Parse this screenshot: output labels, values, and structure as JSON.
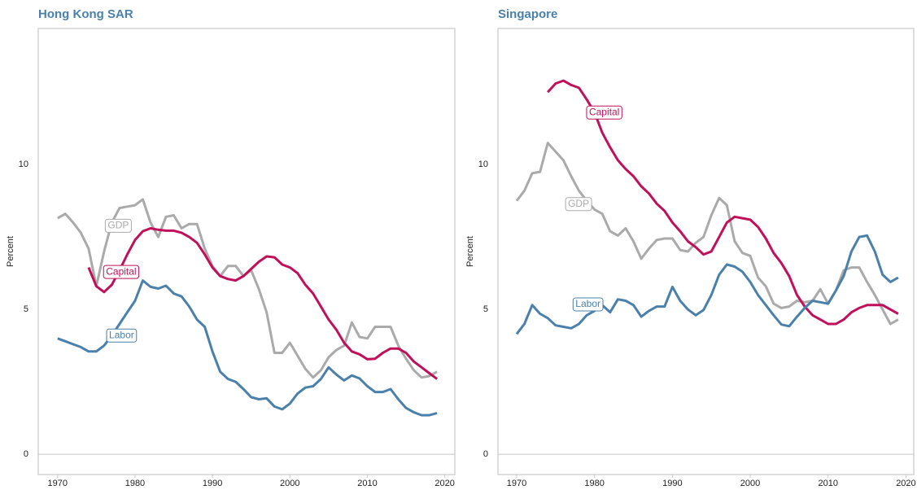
{
  "chart_data": [
    {
      "type": "line",
      "title": "Hong Kong SAR",
      "ylabel": "Percent",
      "x": [
        1970,
        1971,
        1972,
        1973,
        1974,
        1975,
        1976,
        1977,
        1978,
        1979,
        1980,
        1981,
        1982,
        1983,
        1984,
        1985,
        1986,
        1987,
        1988,
        1989,
        1990,
        1991,
        1992,
        1993,
        1994,
        1995,
        1996,
        1997,
        1998,
        1999,
        2000,
        2001,
        2002,
        2003,
        2004,
        2005,
        2006,
        2007,
        2008,
        2009,
        2010,
        2011,
        2012,
        2013,
        2014,
        2015,
        2016,
        2017,
        2018,
        2019
      ],
      "series": [
        {
          "name": "GDP",
          "color": "#aaaaaa",
          "values": [
            8.15,
            8.3,
            8.0,
            7.65,
            7.1,
            5.8,
            7.0,
            8.0,
            8.5,
            8.55,
            8.6,
            8.8,
            8.0,
            7.5,
            8.2,
            8.25,
            7.8,
            7.95,
            7.95,
            7.1,
            6.5,
            6.15,
            6.5,
            6.5,
            6.15,
            6.35,
            5.7,
            4.9,
            3.5,
            3.5,
            3.85,
            3.4,
            2.95,
            2.65,
            2.9,
            3.35,
            3.6,
            3.75,
            4.55,
            4.05,
            4.0,
            4.4,
            4.4,
            4.4,
            3.75,
            3.3,
            2.9,
            2.65,
            2.7,
            2.85
          ]
        },
        {
          "name": "Capital",
          "color": "#c0105a",
          "values": [
            null,
            null,
            null,
            null,
            6.45,
            5.8,
            5.6,
            5.85,
            6.35,
            6.9,
            7.4,
            7.7,
            7.8,
            7.75,
            7.72,
            7.72,
            7.65,
            7.5,
            7.3,
            6.9,
            6.45,
            6.15,
            6.05,
            6.0,
            6.15,
            6.4,
            6.65,
            6.83,
            6.8,
            6.55,
            6.45,
            6.25,
            5.85,
            5.55,
            5.1,
            4.65,
            4.3,
            3.85,
            3.55,
            3.45,
            3.28,
            3.3,
            3.5,
            3.65,
            3.65,
            3.5,
            3.2,
            3.0,
            2.8,
            2.6
          ]
        },
        {
          "name": "Labor",
          "color": "#4a80aa",
          "values": [
            4.0,
            3.9,
            3.8,
            3.7,
            3.55,
            3.55,
            3.75,
            4.1,
            4.5,
            4.9,
            5.3,
            6.0,
            5.78,
            5.72,
            5.82,
            5.55,
            5.45,
            5.1,
            4.65,
            4.4,
            3.55,
            2.85,
            2.6,
            2.5,
            2.25,
            1.97,
            1.9,
            1.93,
            1.65,
            1.55,
            1.75,
            2.1,
            2.3,
            2.35,
            2.6,
            3.0,
            2.75,
            2.55,
            2.72,
            2.62,
            2.35,
            2.15,
            2.15,
            2.25,
            1.9,
            1.6,
            1.45,
            1.35,
            1.35,
            1.42
          ]
        }
      ],
      "xlim": [
        1967.5,
        2021.3
      ],
      "ylim": [
        -0.7,
        14.7
      ],
      "xticks": [
        1970,
        1980,
        1990,
        2000,
        2010,
        2020
      ],
      "yticks": [
        0,
        5,
        10
      ]
    },
    {
      "type": "line",
      "title": "Singapore",
      "ylabel": "Percent",
      "x": [
        1970,
        1971,
        1972,
        1973,
        1974,
        1975,
        1976,
        1977,
        1978,
        1979,
        1980,
        1981,
        1982,
        1983,
        1984,
        1985,
        1986,
        1987,
        1988,
        1989,
        1990,
        1991,
        1992,
        1993,
        1994,
        1995,
        1996,
        1997,
        1998,
        1999,
        2000,
        2001,
        2002,
        2003,
        2004,
        2005,
        2006,
        2007,
        2008,
        2009,
        2010,
        2011,
        2012,
        2013,
        2014,
        2015,
        2016,
        2017,
        2018,
        2019
      ],
      "series": [
        {
          "name": "GDP",
          "color": "#aaaaaa",
          "values": [
            8.75,
            9.1,
            9.7,
            9.75,
            10.75,
            10.45,
            10.15,
            9.6,
            9.1,
            8.75,
            8.45,
            8.3,
            7.7,
            7.55,
            7.8,
            7.35,
            6.75,
            7.1,
            7.4,
            7.45,
            7.45,
            7.05,
            7.0,
            7.3,
            7.5,
            8.25,
            8.85,
            8.6,
            7.35,
            6.95,
            6.85,
            6.1,
            5.8,
            5.2,
            5.05,
            5.1,
            5.3,
            5.25,
            5.3,
            5.7,
            5.2,
            5.65,
            6.35,
            6.45,
            6.45,
            5.95,
            5.5,
            5.0,
            4.5,
            4.65
          ]
        },
        {
          "name": "Capital",
          "color": "#c0105a",
          "values": [
            null,
            null,
            null,
            null,
            12.5,
            12.8,
            12.9,
            12.75,
            12.65,
            12.25,
            11.8,
            11.1,
            10.6,
            10.15,
            9.85,
            9.6,
            9.25,
            9.0,
            8.65,
            8.4,
            8.0,
            7.7,
            7.35,
            7.15,
            6.9,
            7.0,
            7.5,
            8.0,
            8.2,
            8.15,
            8.1,
            7.85,
            7.45,
            6.95,
            6.6,
            6.15,
            5.5,
            5.1,
            4.8,
            4.65,
            4.5,
            4.5,
            4.65,
            4.9,
            5.05,
            5.15,
            5.15,
            5.15,
            5.0,
            4.85
          ]
        },
        {
          "name": "Labor",
          "color": "#4a80aa",
          "values": [
            4.15,
            4.5,
            5.15,
            4.85,
            4.7,
            4.45,
            4.4,
            4.35,
            4.5,
            4.8,
            4.95,
            5.15,
            4.9,
            5.35,
            5.3,
            5.15,
            4.75,
            4.95,
            5.1,
            5.1,
            5.78,
            5.3,
            5.0,
            4.8,
            4.98,
            5.5,
            6.2,
            6.55,
            6.48,
            6.3,
            5.95,
            5.5,
            5.15,
            4.8,
            4.48,
            4.42,
            4.75,
            5.05,
            5.3,
            5.25,
            5.2,
            5.65,
            6.15,
            7.0,
            7.5,
            7.55,
            7.0,
            6.2,
            5.95,
            6.1
          ]
        }
      ],
      "xlim": [
        1967.6,
        2021.0
      ],
      "ylim": [
        -0.7,
        14.7
      ],
      "xticks": [
        1970,
        1980,
        1990,
        2000,
        2010,
        2020
      ],
      "yticks": [
        0,
        5,
        10
      ]
    }
  ]
}
